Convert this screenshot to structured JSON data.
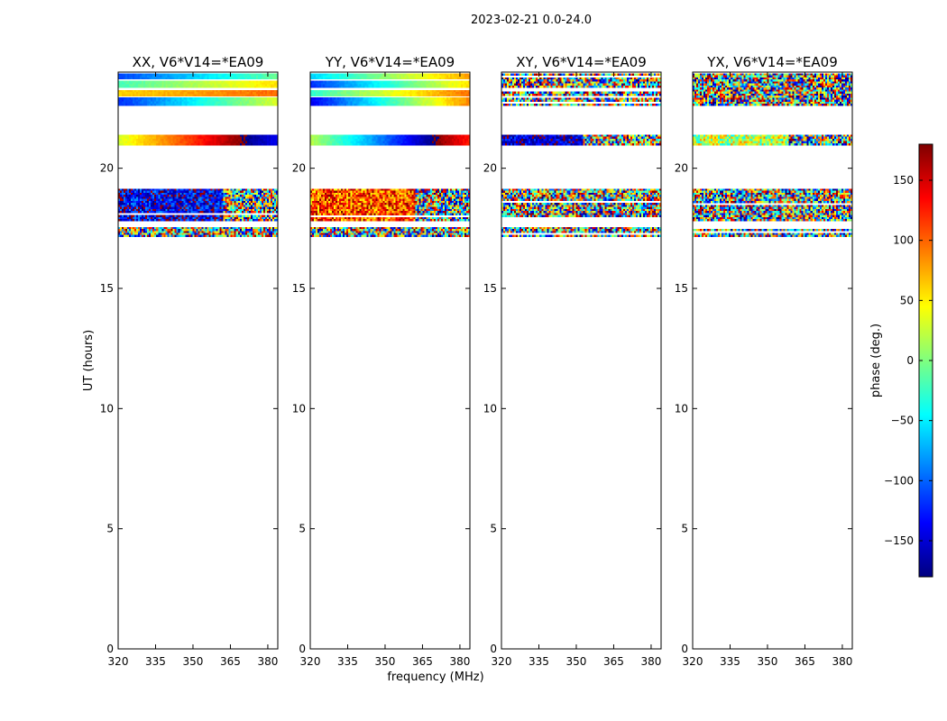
{
  "suptitle": "2023-02-21 0.0-24.0",
  "xlabel": "frequency (MHz)",
  "ylabel": "UT (hours)",
  "colorbar_label": "phase (deg.)",
  "chart_data": {
    "type": "heatmap",
    "xlim": [
      320,
      384
    ],
    "ylim": [
      0,
      24
    ],
    "x_ticks": [
      320,
      335,
      350,
      365,
      380
    ],
    "y_ticks": [
      0,
      5,
      10,
      15,
      20
    ],
    "color_range": [
      -180,
      180
    ],
    "colorbar_ticks": [
      -150,
      -100,
      -50,
      0,
      50,
      100,
      150
    ],
    "colorbar_tick_labels": [
      "−150",
      "−100",
      "−50",
      "0",
      "50",
      "100",
      "150"
    ],
    "colormap": [
      "#00007f",
      "#0000ff",
      "#007fff",
      "#00ffff",
      "#7fff7f",
      "#ffff00",
      "#ff7f00",
      "#ff0000",
      "#7f0000"
    ],
    "panels": [
      {
        "title": "XX, V6*V14=*EA09",
        "bands": [
          {
            "from": 17.15,
            "to": 17.55,
            "style": "noise",
            "phase": 0,
            "spread": 180
          },
          {
            "from": 17.8,
            "to": 19.15,
            "style": "noise",
            "phase": -140,
            "spread": 60,
            "noisy_above": 362
          },
          {
            "from": 20.95,
            "to": 21.4,
            "style": "gradient",
            "phase": 30,
            "slope": 3.0
          },
          {
            "from": 22.6,
            "to": 22.95,
            "style": "gradient",
            "phase": -120,
            "slope": 2.4
          },
          {
            "from": 23.0,
            "to": 23.25,
            "style": "gradient",
            "phase": 60,
            "slope": 0.6
          },
          {
            "from": 23.35,
            "to": 23.65,
            "style": "gradient",
            "phase": -20,
            "slope": 1.2
          },
          {
            "from": 23.7,
            "to": 23.95,
            "style": "gradient",
            "phase": -110,
            "slope": 1.6
          }
        ]
      },
      {
        "title": "YY, V6*V14=*EA09",
        "bands": [
          {
            "from": 17.15,
            "to": 17.55,
            "style": "noise",
            "phase": 0,
            "spread": 180
          },
          {
            "from": 17.8,
            "to": 19.15,
            "style": "noise",
            "phase": 110,
            "spread": 70,
            "noisy_above": 362
          },
          {
            "from": 20.95,
            "to": 21.4,
            "style": "gradient",
            "phase": 20,
            "slope": -4.0
          },
          {
            "from": 22.6,
            "to": 22.95,
            "style": "gradient",
            "phase": -140,
            "slope": 3.6
          },
          {
            "from": 23.0,
            "to": 23.25,
            "style": "gradient",
            "phase": -30,
            "slope": 2.0
          },
          {
            "from": 23.35,
            "to": 23.65,
            "style": "gradient",
            "phase": -120,
            "slope": 2.8
          },
          {
            "from": 23.7,
            "to": 23.95,
            "style": "gradient",
            "phase": -60,
            "slope": 2.2
          }
        ]
      },
      {
        "title": "XY, V6*V14=*EA09",
        "bands": [
          {
            "from": 17.15,
            "to": 17.55,
            "style": "noise",
            "phase": 0,
            "spread": 180
          },
          {
            "from": 17.8,
            "to": 19.15,
            "style": "noise",
            "phase": 0,
            "spread": 180
          },
          {
            "from": 20.95,
            "to": 21.4,
            "style": "noise",
            "phase": -150,
            "spread": 40,
            "noisy_above": 352
          },
          {
            "from": 22.6,
            "to": 23.95,
            "style": "noise",
            "phase": 0,
            "spread": 180
          }
        ]
      },
      {
        "title": "YX, V6*V14=*EA09",
        "bands": [
          {
            "from": 17.15,
            "to": 17.55,
            "style": "noise",
            "phase": 0,
            "spread": 180
          },
          {
            "from": 17.8,
            "to": 19.15,
            "style": "noise",
            "phase": 0,
            "spread": 180
          },
          {
            "from": 20.95,
            "to": 21.4,
            "style": "noise",
            "phase": 20,
            "spread": 70,
            "noisy_above": 358
          },
          {
            "from": 22.6,
            "to": 23.95,
            "style": "noise",
            "phase": 0,
            "spread": 180
          }
        ]
      }
    ]
  }
}
